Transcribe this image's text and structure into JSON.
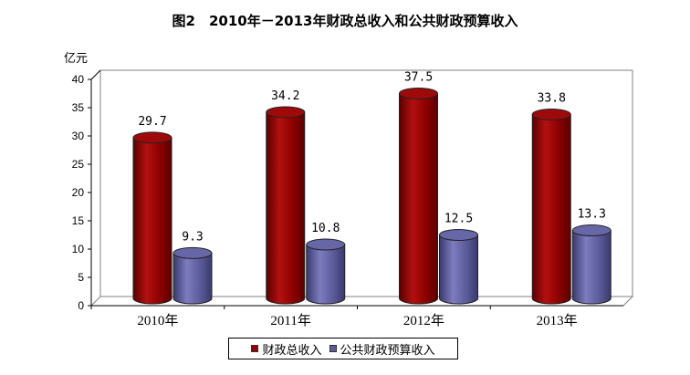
{
  "title": "图2　2010年－2013年财政总收入和公共财政预算收入",
  "chart_data": {
    "type": "bar",
    "title": "图2　2010年－2013年财政总收入和公共财政预算收入",
    "unit": "亿元",
    "categories": [
      "2010年",
      "2011年",
      "2012年",
      "2013年"
    ],
    "yticks": [
      "0",
      "5",
      "10",
      "15",
      "20",
      "25",
      "30",
      "35",
      "40"
    ],
    "ylim": [
      0,
      40
    ],
    "grid": false,
    "legend_position": "bottom",
    "series": [
      {
        "name": "财政总收入",
        "color": "#8b0000",
        "values": [
          29.7,
          34.2,
          37.5,
          33.8
        ],
        "labels": [
          "29.7",
          "34.2",
          "37.5",
          "33.8"
        ]
      },
      {
        "name": "公共财政预算收入",
        "color": "#5b5b99",
        "values": [
          9.3,
          10.8,
          12.5,
          13.3
        ],
        "labels": [
          "9.3",
          "10.8",
          "12.5",
          "13.3"
        ]
      }
    ]
  }
}
